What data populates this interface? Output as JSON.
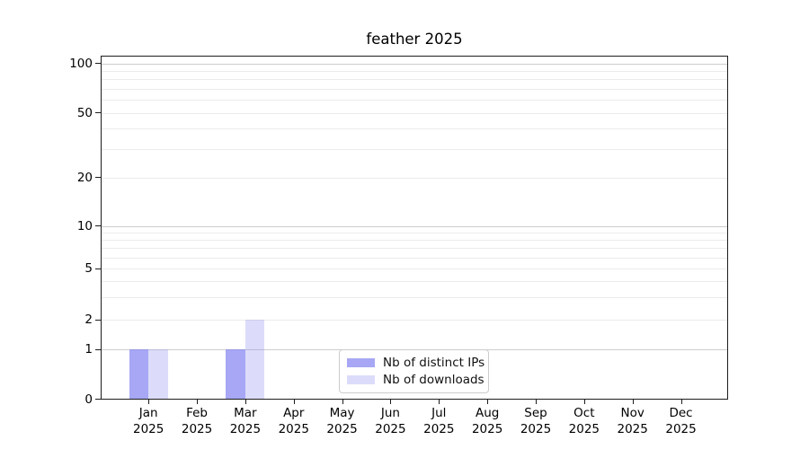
{
  "title": "feather 2025",
  "chart_data": {
    "type": "bar",
    "title": "feather 2025",
    "categories": [
      "Jan",
      "Feb",
      "Mar",
      "Apr",
      "May",
      "Jun",
      "Jul",
      "Aug",
      "Sep",
      "Oct",
      "Nov",
      "Dec"
    ],
    "category_year": "2025",
    "series": [
      {
        "name": "Nb of distinct IPs",
        "color": "rgba(120,120,240,0.65)",
        "color_hex": "#a9a9f4",
        "values": [
          1,
          0,
          1,
          0,
          0,
          0,
          0,
          0,
          0,
          0,
          0,
          0
        ]
      },
      {
        "name": "Nb of downloads",
        "color": "rgba(150,150,240,0.33)",
        "color_hex": "#dcdcf9",
        "values": [
          1,
          0,
          2,
          0,
          0,
          0,
          0,
          0,
          0,
          0,
          0,
          0
        ]
      }
    ],
    "xlabel": "",
    "ylabel": "",
    "yscale": "symlog",
    "ylim": [
      0,
      110
    ],
    "ytick_labels": [
      "0",
      "1",
      "2",
      "5",
      "10",
      "20",
      "50",
      "100"
    ],
    "ytick_values": [
      0,
      1,
      2,
      5,
      10,
      20,
      50,
      100
    ],
    "grid": "horizontal",
    "legend_position": "lower-center-inside"
  }
}
